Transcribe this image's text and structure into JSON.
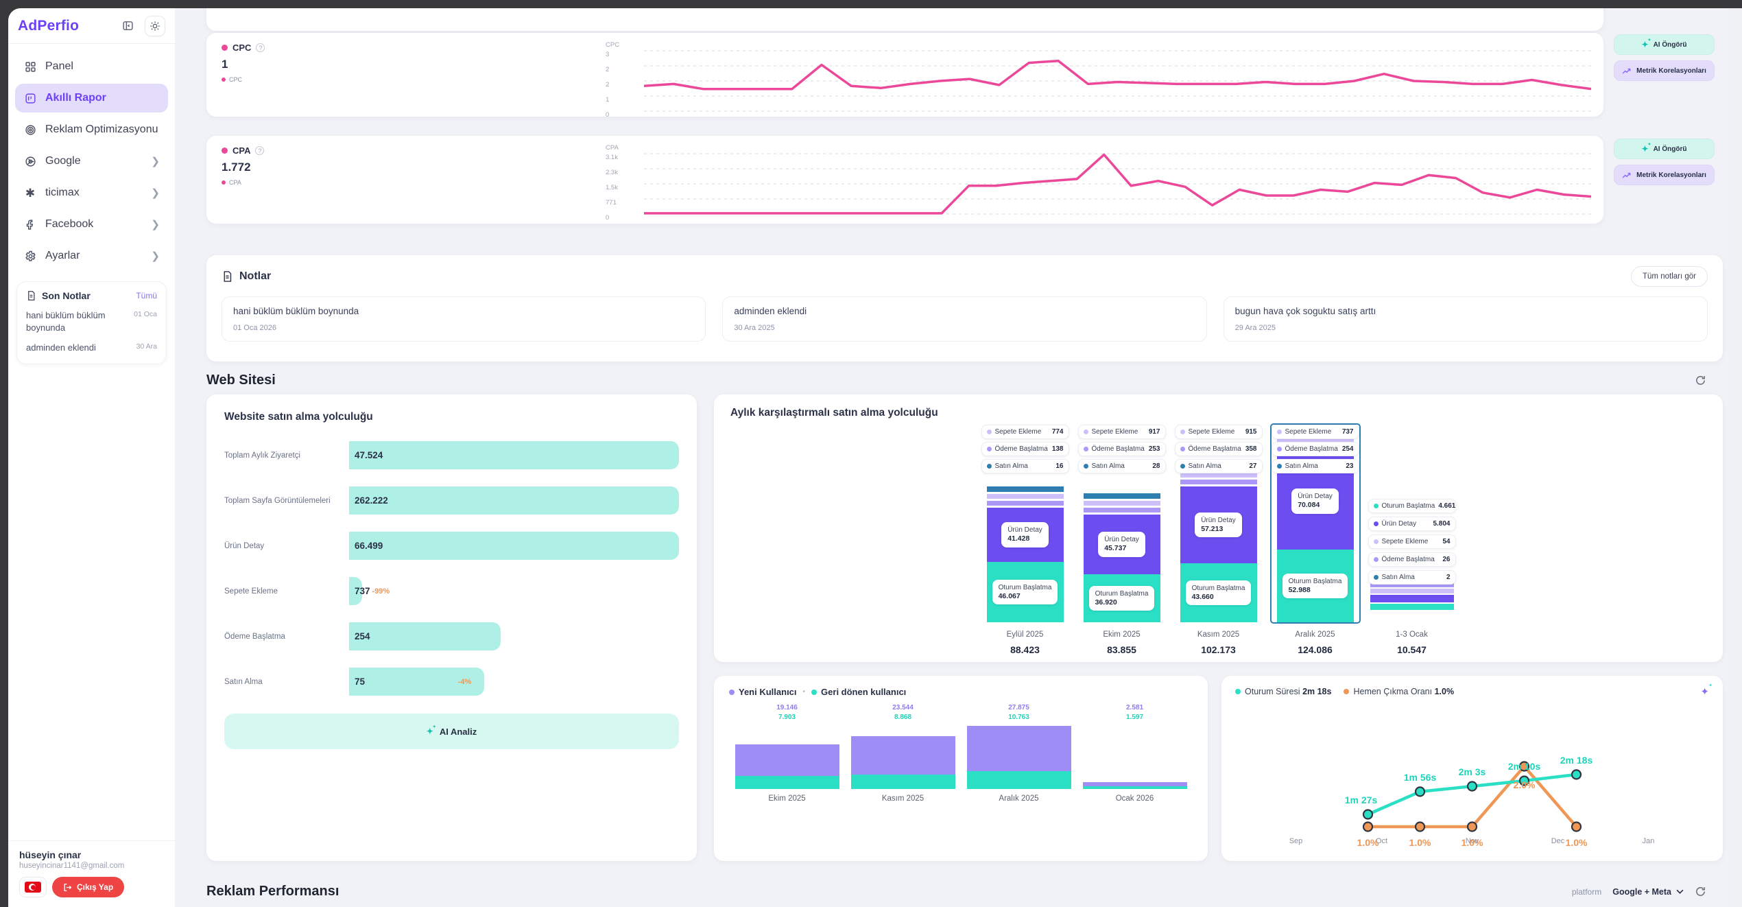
{
  "app": {
    "logo": "AdPerfio"
  },
  "sidebar": {
    "items": [
      {
        "label": "Panel",
        "icon": "grid-icon"
      },
      {
        "label": "Akıllı Rapor",
        "icon": "report-icon",
        "active": true
      },
      {
        "label": "Reklam Optimizasyonu",
        "icon": "target-icon"
      },
      {
        "label": "Google",
        "icon": "google-icon",
        "expandable": true
      },
      {
        "label": "ticimax",
        "icon": "asterisk-icon",
        "expandable": true
      },
      {
        "label": "Facebook",
        "icon": "facebook-icon",
        "expandable": true
      },
      {
        "label": "Ayarlar",
        "icon": "gear-icon",
        "expandable": true
      }
    ],
    "recent_notes": {
      "title": "Son Notlar",
      "all_label": "Tümü",
      "items": [
        {
          "text": "hani büklüm büklüm boynunda",
          "date": "01 Oca"
        },
        {
          "text": "adminden eklendi",
          "date": "30 Ara"
        }
      ]
    },
    "user": {
      "name": "hüseyin çınar",
      "email": "huseyincinar1141@gmail.com",
      "logout_label": "Çıkış Yap",
      "flag": "turkish-flag"
    }
  },
  "metric_buttons": {
    "ai": "AI Öngörü",
    "correlations": "Metrik Korelasyonları"
  },
  "notes": {
    "title": "Notlar",
    "see_all": "Tüm notları gör",
    "items": [
      {
        "text": "hani büklüm büklüm boynunda",
        "date": "01 Oca 2026"
      },
      {
        "text": "adminden eklendi",
        "date": "30 Ara 2025"
      },
      {
        "text": "bugun hava çok soguktu satış arttı",
        "date": "29 Ara 2025"
      }
    ]
  },
  "web": {
    "heading": "Web Sitesi",
    "funnel": {
      "title": "Website satın alma yolculuğu",
      "ai_button": "AI Analiz",
      "rows": [
        {
          "label": "Toplam Aylık Ziyaretçi",
          "value": "47.524",
          "width_pct": 100,
          "pct": ""
        },
        {
          "label": "Toplam Sayfa Görüntülemeleri",
          "value": "262.222",
          "width_pct": 100,
          "pct": ""
        },
        {
          "label": "Ürün Detay",
          "value": "66.499",
          "width_pct": 100,
          "pct": ""
        },
        {
          "label": "Sepete Ekleme",
          "value": "737",
          "width_pct": 4,
          "pct": "-99%"
        },
        {
          "label": "Ödeme Başlatma",
          "value": "254",
          "width_pct": 46,
          "pct": ""
        },
        {
          "label": "Satın Alma",
          "value": "75",
          "width_pct": 41,
          "pct": "-4%"
        }
      ]
    },
    "monthly_title": "Aylık karşılaştırmalı satın alma yolculuğu",
    "ads": {
      "heading": "Reklam Performansı",
      "platform_label": "platform",
      "platform_value": "Google + Meta"
    }
  },
  "colors": {
    "pink": "#ec4899",
    "purple": "#6c4df0",
    "teal": "#2bdfc5",
    "mint": "#aff0e6",
    "lavender_light": "#cdbffa",
    "lavender": "#ab98f8",
    "steel_blue": "#2e7fb0",
    "orange": "#ef9757",
    "bar_purple": "#9d8df5",
    "brand": "#6d40f5",
    "red": "#ef4444"
  },
  "chart_data": [
    {
      "id": "cpc",
      "type": "line",
      "title": "CPC",
      "big_value": "1",
      "legend": "CPC",
      "axis_title": "CPC",
      "yticks": [
        "3",
        "2",
        "2",
        "1",
        "0"
      ],
      "ylim": [
        0,
        3
      ],
      "grid": true,
      "values": [
        1.25,
        1.35,
        1.1,
        1.1,
        1.1,
        1.1,
        2.3,
        1.25,
        1.15,
        1.35,
        1.5,
        1.6,
        1.3,
        2.4,
        2.5,
        1.35,
        1.45,
        1.4,
        1.35,
        1.35,
        1.35,
        1.45,
        1.35,
        1.35,
        1.5,
        1.85,
        1.5,
        1.45,
        1.35,
        1.35,
        1.55,
        1.3,
        1.1
      ]
    },
    {
      "id": "cpa",
      "type": "line",
      "title": "CPA",
      "big_value": "1.772",
      "legend": "CPA",
      "axis_title": "CPA",
      "yticks": [
        "3.1k",
        "2.3k",
        "1.5k",
        "771",
        "0"
      ],
      "ylim": [
        0,
        3100
      ],
      "grid": true,
      "values": [
        40,
        40,
        40,
        40,
        40,
        40,
        40,
        40,
        40,
        40,
        40,
        40,
        1450,
        1450,
        1600,
        1700,
        1800,
        3050,
        1450,
        1700,
        1400,
        450,
        1250,
        950,
        950,
        1250,
        1150,
        1600,
        1500,
        2000,
        1850,
        1100,
        850,
        1250,
        1000,
        900
      ]
    },
    {
      "id": "monthly_journey",
      "type": "bar-stacked",
      "series_names": {
        "oturum": "Oturum Başlatma",
        "urun": "Ürün Detay",
        "sepete": "Sepete Ekleme",
        "odeme": "Ödeme Başlatma",
        "satin": "Satın Alma"
      },
      "months": [
        {
          "label": "Eylül 2025",
          "total": "88.423",
          "total_num": 88423,
          "sepete": "774",
          "odeme": "138",
          "satin": "16",
          "urun": "41.428",
          "urun_num": 41428,
          "oturum": "46.067",
          "oturum_num": 46067,
          "selected": false
        },
        {
          "label": "Ekim 2025",
          "total": "83.855",
          "total_num": 83855,
          "sepete": "917",
          "odeme": "253",
          "satin": "28",
          "urun": "45.737",
          "urun_num": 45737,
          "oturum": "36.920",
          "oturum_num": 36920,
          "selected": false
        },
        {
          "label": "Kasım 2025",
          "total": "102.173",
          "total_num": 102173,
          "sepete": "915",
          "odeme": "358",
          "satin": "27",
          "urun": "57.213",
          "urun_num": 57213,
          "oturum": "43.660",
          "oturum_num": 43660,
          "selected": false
        },
        {
          "label": "Aralık 2025",
          "total": "124.086",
          "total_num": 124086,
          "sepete": "737",
          "odeme": "254",
          "satin": "23",
          "urun": "70.084",
          "urun_num": 70084,
          "oturum": "52.988",
          "oturum_num": 52988,
          "selected": true
        }
      ],
      "last_period": {
        "label": "1-3 Ocak",
        "total": "10.547",
        "legend": [
          {
            "name": "Oturum Başlatma",
            "value": "4.661",
            "color_key": "teal"
          },
          {
            "name": "Ürün Detay",
            "value": "5.804",
            "color_key": "purple"
          },
          {
            "name": "Sepete Ekleme",
            "value": "54",
            "color_key": "lavender_light"
          },
          {
            "name": "Ödeme Başlatma",
            "value": "26",
            "color_key": "lavender"
          },
          {
            "name": "Satın Alma",
            "value": "2",
            "color_key": "steel_blue"
          }
        ]
      }
    },
    {
      "id": "users",
      "type": "bar-stacked",
      "legend": [
        {
          "name": "Yeni Kullanıcı",
          "color_key": "bar_purple"
        },
        {
          "name": "Geri dönen kullanıcı",
          "color_key": "teal"
        }
      ],
      "groups": [
        {
          "label": "Ekim 2025",
          "new": 19146,
          "new_label": "19.146",
          "ret": 7903,
          "ret_label": "7.903"
        },
        {
          "label": "Kasım 2025",
          "new": 23544,
          "new_label": "23.544",
          "ret": 8868,
          "ret_label": "8.868"
        },
        {
          "label": "Aralık 2025",
          "new": 27875,
          "new_label": "27.875",
          "ret": 10763,
          "ret_label": "10.763"
        },
        {
          "label": "Ocak 2026",
          "new": 2581,
          "new_label": "2.581",
          "ret": 1597,
          "ret_label": "1.597"
        }
      ]
    },
    {
      "id": "session",
      "type": "line",
      "legend": [
        {
          "name": "Oturum Süresi",
          "value": "2m 18s",
          "color_key": "teal"
        },
        {
          "name": "Hemen Çıkma Oranı",
          "value": "1.0%",
          "color_key": "orange"
        }
      ],
      "x_labels": [
        "Sep",
        "Oct",
        "Nov",
        "Dec",
        "Jan"
      ],
      "session_series": {
        "labels": [
          "1m 27s",
          "1m 56s",
          "2m 3s",
          "2m 10s",
          "2m 18s"
        ],
        "seconds": [
          87,
          116,
          123,
          130,
          138
        ]
      },
      "bounce_series": {
        "labels": [
          "1.0%",
          "1.0%",
          "1.0%",
          "2.0%",
          "1.0%"
        ],
        "values": [
          1,
          1,
          1,
          2,
          1
        ]
      }
    }
  ]
}
